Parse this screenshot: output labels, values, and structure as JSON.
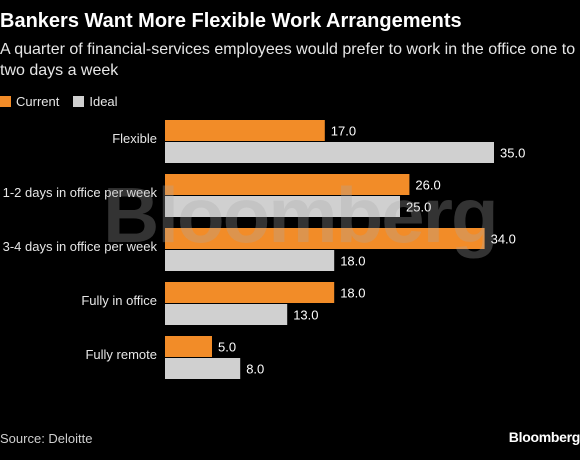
{
  "header": {
    "title": "Bankers Want More Flexible Work Arrangements",
    "subtitle": "A quarter of financial-services employees would prefer to work in the office one to two days a week"
  },
  "footer": {
    "source": "Source: Deloitte",
    "brand": "Bloomberg"
  },
  "watermark": "Bloomberg",
  "chart_data": {
    "type": "bar",
    "orientation": "horizontal",
    "categories": [
      "Flexible",
      "1-2 days in office per week",
      "3-4 days in office per week",
      "Fully in office",
      "Fully remote"
    ],
    "series": [
      {
        "name": "Current",
        "color": "#f28c28",
        "values": [
          17.0,
          26.0,
          34.0,
          18.0,
          5.0
        ]
      },
      {
        "name": "Ideal",
        "color": "#d0d0d0",
        "values": [
          35.0,
          25.0,
          18.0,
          13.0,
          8.0
        ]
      }
    ],
    "xlim": [
      0,
      40
    ],
    "value_labels": true,
    "grid": false,
    "legend": "top-left"
  }
}
